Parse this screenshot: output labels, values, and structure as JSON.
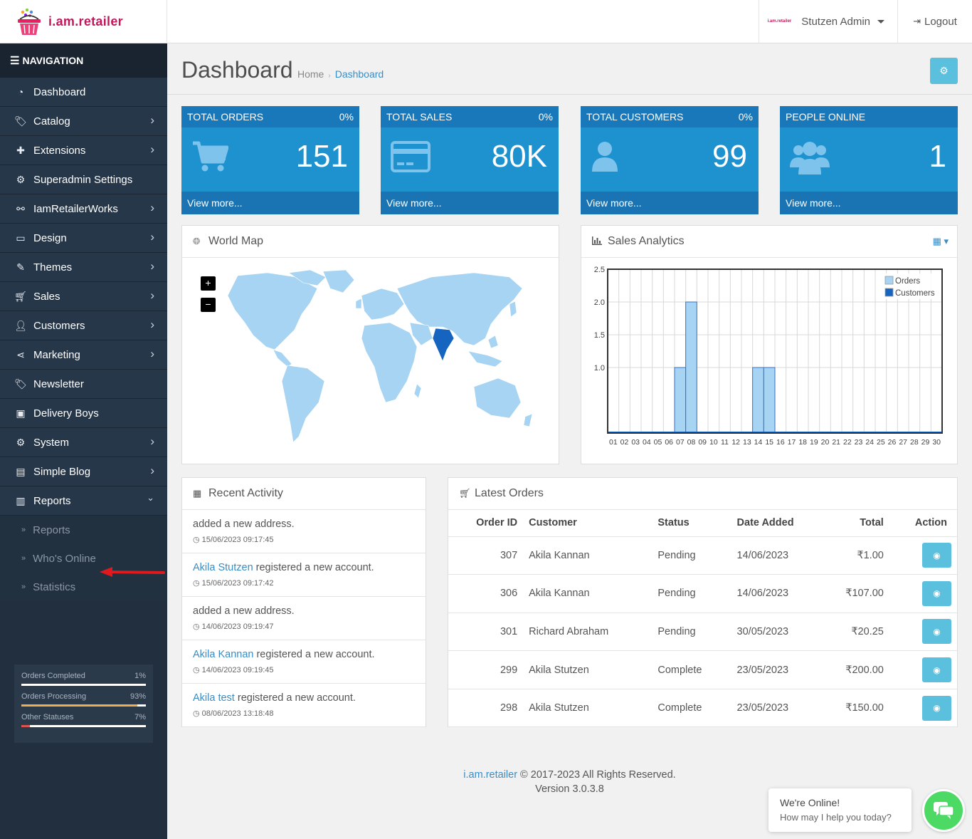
{
  "header": {
    "brand": "i.am.retailer",
    "mini_logo": "i.am.retailer",
    "user_name": "Stutzen Admin",
    "logout_label": "Logout"
  },
  "sidebar": {
    "nav_title": "NAVIGATION",
    "items": [
      {
        "label": "Dashboard",
        "icon": "dashboard-icon",
        "chevron": false
      },
      {
        "label": "Catalog",
        "icon": "tags-icon",
        "chevron": true
      },
      {
        "label": "Extensions",
        "icon": "puzzle-icon",
        "chevron": true
      },
      {
        "label": "Superadmin Settings",
        "icon": "cogs-icon",
        "chevron": false
      },
      {
        "label": "IamRetailerWorks",
        "icon": "bicycle-icon",
        "chevron": true
      },
      {
        "label": "Design",
        "icon": "monitor-icon",
        "chevron": true
      },
      {
        "label": "Themes",
        "icon": "brush-icon",
        "chevron": true
      },
      {
        "label": "Sales",
        "icon": "cart-icon",
        "chevron": true
      },
      {
        "label": "Customers",
        "icon": "user-icon",
        "chevron": true
      },
      {
        "label": "Marketing",
        "icon": "share-icon",
        "chevron": true
      },
      {
        "label": "Newsletter",
        "icon": "tags-icon",
        "chevron": false
      },
      {
        "label": "Delivery Boys",
        "icon": "badge-icon",
        "chevron": false
      },
      {
        "label": "System",
        "icon": "gear-icon",
        "chevron": true
      },
      {
        "label": "Simple Blog",
        "icon": "file-icon",
        "chevron": true
      },
      {
        "label": "Reports",
        "icon": "bar-chart-icon",
        "chevron": "down"
      }
    ],
    "sub_items": [
      "Reports",
      "Who's Online",
      "Statistics"
    ],
    "stats": [
      {
        "label": "Orders Completed",
        "pct_label": "1%",
        "fraction": 0.01,
        "color": "#ffffff"
      },
      {
        "label": "Orders Processing",
        "pct_label": "93%",
        "fraction": 0.93,
        "color": "#f0ad4e"
      },
      {
        "label": "Other Statuses",
        "pct_label": "7%",
        "fraction": 0.07,
        "color": "#d9534f"
      }
    ]
  },
  "page": {
    "title": "Dashboard",
    "breadcrumb": [
      "Home",
      "Dashboard"
    ]
  },
  "tiles": [
    {
      "title": "TOTAL ORDERS",
      "pct": "0%",
      "value": "151",
      "footer": "View more...",
      "icon": "cart-icon"
    },
    {
      "title": "TOTAL SALES",
      "pct": "0%",
      "value": "80K",
      "footer": "View more...",
      "icon": "credit-card-icon"
    },
    {
      "title": "TOTAL CUSTOMERS",
      "pct": "0%",
      "value": "99",
      "footer": "View more...",
      "icon": "user-icon"
    },
    {
      "title": "PEOPLE ONLINE",
      "pct": "",
      "value": "1",
      "footer": "View more...",
      "icon": "users-icon"
    }
  ],
  "world_map": {
    "title": "World Map",
    "zoom_in": "+",
    "zoom_out": "−",
    "highlight_color": "#1565c0",
    "land_color": "#a6d4f2"
  },
  "sales_analytics": {
    "title": "Sales Analytics"
  },
  "chart_data": {
    "type": "bar",
    "x": [
      "01",
      "02",
      "03",
      "04",
      "05",
      "06",
      "07",
      "08",
      "09",
      "10",
      "11",
      "12",
      "13",
      "14",
      "15",
      "16",
      "17",
      "18",
      "19",
      "20",
      "21",
      "22",
      "23",
      "24",
      "25",
      "26",
      "27",
      "28",
      "29",
      "30"
    ],
    "series": [
      {
        "name": "Orders",
        "values": [
          0,
          0,
          0,
          0,
          0,
          0,
          1,
          2,
          0,
          0,
          0,
          0,
          0,
          1,
          1,
          0,
          0,
          0,
          0,
          0,
          0,
          0,
          0,
          0,
          0,
          0,
          0,
          0,
          0,
          0
        ],
        "color": "#a6d4f2"
      },
      {
        "name": "Customers",
        "values": [
          0,
          0,
          0,
          0,
          0,
          0,
          0,
          0,
          0,
          0,
          0,
          0,
          0,
          0,
          0,
          0,
          0,
          0,
          0,
          0,
          0,
          0,
          0,
          0,
          0,
          0,
          0,
          0,
          0,
          0
        ],
        "color": "#1565c0"
      }
    ],
    "yticks": [
      "1.0",
      "1.5",
      "2.0",
      "2.5"
    ],
    "ylim": [
      0,
      2.5
    ],
    "grid": true,
    "legend": "top-right"
  },
  "recent_activity": {
    "title": "Recent Activity",
    "items": [
      {
        "link": "",
        "text": "added a new address.",
        "time": "15/06/2023 09:17:45"
      },
      {
        "link": "Akila Stutzen",
        "text": " registered a new account.",
        "time": "15/06/2023 09:17:42"
      },
      {
        "link": "",
        "text": "added a new address.",
        "time": "14/06/2023 09:19:47"
      },
      {
        "link": "Akila Kannan",
        "text": " registered a new account.",
        "time": "14/06/2023 09:19:45"
      },
      {
        "link": "Akila test",
        "text": " registered a new account.",
        "time": "08/06/2023 13:18:48"
      }
    ]
  },
  "latest_orders": {
    "title": "Latest Orders",
    "columns": [
      "Order ID",
      "Customer",
      "Status",
      "Date Added",
      "Total",
      "Action"
    ],
    "rows": [
      {
        "id": "307",
        "customer": "Akila Kannan",
        "status": "Pending",
        "date": "14/06/2023",
        "total": "₹1.00"
      },
      {
        "id": "306",
        "customer": "Akila Kannan",
        "status": "Pending",
        "date": "14/06/2023",
        "total": "₹107.00"
      },
      {
        "id": "301",
        "customer": "Richard Abraham",
        "status": "Pending",
        "date": "30/05/2023",
        "total": "₹20.25"
      },
      {
        "id": "299",
        "customer": "Akila Stutzen",
        "status": "Complete",
        "date": "23/05/2023",
        "total": "₹200.00"
      },
      {
        "id": "298",
        "customer": "Akila Stutzen",
        "status": "Complete",
        "date": "23/05/2023",
        "total": "₹150.00"
      }
    ]
  },
  "footer": {
    "brand_link": "i.am.retailer",
    "copyright": " © 2017-2023 All Rights Reserved.",
    "version": "Version 3.0.3.8"
  },
  "chat": {
    "title": "We're Online!",
    "subtitle": "How may I help you today?"
  }
}
